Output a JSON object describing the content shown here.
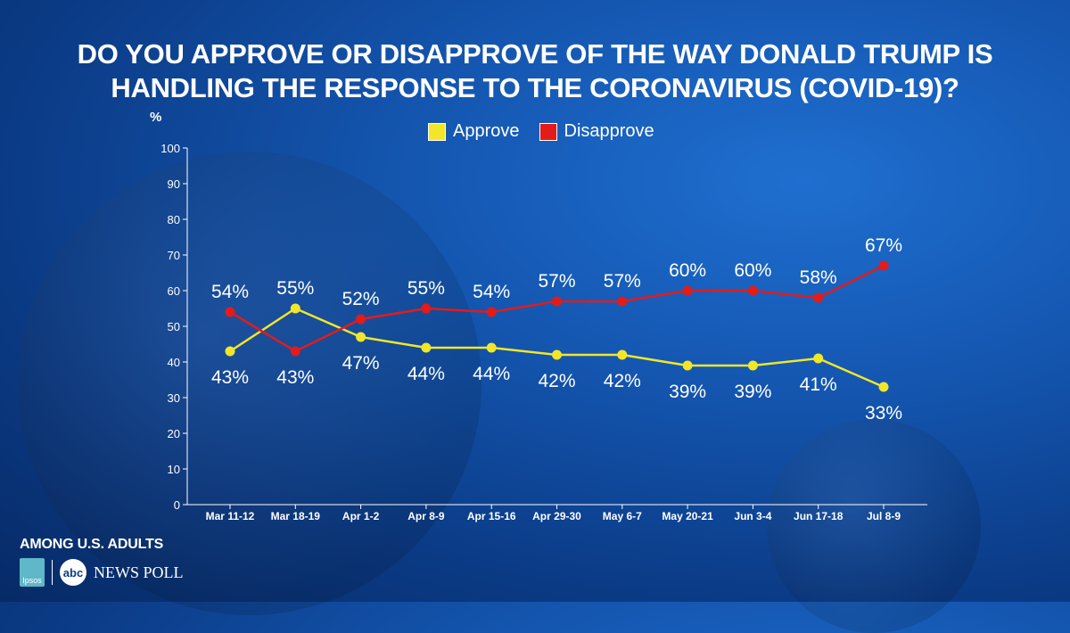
{
  "header": {
    "title_line1": "DO YOU APPROVE OR DISAPPROVE OF THE WAY DONALD TRUMP IS",
    "title_line2": "HANDLING THE RESPONSE TO THE CORONAVIRUS (COVID-19)?"
  },
  "legend": {
    "approve": "Approve",
    "disapprove": "Disapprove"
  },
  "footer": {
    "among": "AMONG U.S. ADULTS",
    "ipsos": "Ipsos",
    "abc": "abc",
    "news": "NEWS",
    "poll": "POLL"
  },
  "colors": {
    "approve": "#f2e62a",
    "disapprove": "#e31b1b"
  },
  "chart_data": {
    "type": "line",
    "title": "DO YOU APPROVE OR DISAPPROVE OF THE WAY DONALD TRUMP IS HANDLING THE RESPONSE TO THE CORONAVIRUS (COVID-19)?",
    "ylabel": "%",
    "xlabel": "",
    "ylim": [
      0,
      100
    ],
    "yticks": [
      0,
      10,
      20,
      30,
      40,
      50,
      60,
      70,
      80,
      90,
      100
    ],
    "categories": [
      "Mar 11-12",
      "Mar 18-19",
      "Apr 1-2",
      "Apr 8-9",
      "Apr 15-16",
      "Apr 29-30",
      "May 6-7",
      "May 20-21",
      "Jun 3-4",
      "Jun 17-18",
      "Jul 8-9"
    ],
    "series": [
      {
        "name": "Approve",
        "values": [
          43,
          55,
          47,
          44,
          44,
          42,
          42,
          39,
          39,
          41,
          33
        ],
        "labels": [
          "43%",
          "55%",
          "47%",
          "44%",
          "44%",
          "42%",
          "42%",
          "39%",
          "39%",
          "41%",
          "33%"
        ]
      },
      {
        "name": "Disapprove",
        "values": [
          54,
          43,
          52,
          55,
          54,
          57,
          57,
          60,
          60,
          58,
          67
        ],
        "labels": [
          "54%",
          "43%",
          "52%",
          "55%",
          "54%",
          "57%",
          "57%",
          "60%",
          "60%",
          "58%",
          "67%"
        ]
      }
    ],
    "legend": "top-center",
    "grid": false
  }
}
